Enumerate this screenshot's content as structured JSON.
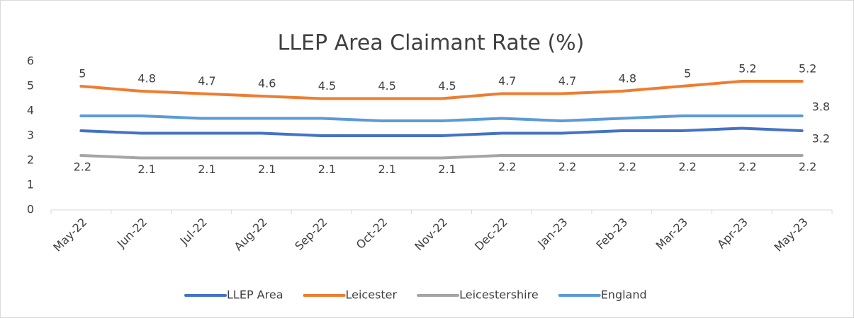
{
  "chart_data": {
    "type": "line",
    "title": "LLEP Area Claimant Rate (%)",
    "categories": [
      "May-22",
      "Jun-22",
      "Jul-22",
      "Aug-22",
      "Sep-22",
      "Oct-22",
      "Nov-22",
      "Dec-22",
      "Jan-23",
      "Feb-23",
      "Mar-23",
      "Apr-23",
      "May-23"
    ],
    "series": [
      {
        "name": "LLEP Area",
        "color": "#4472c4",
        "values": [
          3.2,
          3.1,
          3.1,
          3.1,
          3.0,
          3.0,
          3.0,
          3.1,
          3.1,
          3.2,
          3.2,
          3.3,
          3.2
        ],
        "data_labels": "last",
        "label_position": "below"
      },
      {
        "name": "Leicester",
        "color": "#ed7d31",
        "values": [
          5,
          4.8,
          4.7,
          4.6,
          4.5,
          4.5,
          4.5,
          4.7,
          4.7,
          4.8,
          5,
          5.2,
          5.2
        ],
        "data_labels": "all",
        "label_position": "above"
      },
      {
        "name": "Leicestershire",
        "color": "#a5a5a5",
        "values": [
          2.2,
          2.1,
          2.1,
          2.1,
          2.1,
          2.1,
          2.1,
          2.2,
          2.2,
          2.2,
          2.2,
          2.2,
          2.2
        ],
        "data_labels": "all",
        "label_position": "below"
      },
      {
        "name": "England",
        "color": "#5b9bd5",
        "values": [
          3.8,
          3.8,
          3.7,
          3.7,
          3.7,
          3.6,
          3.6,
          3.7,
          3.6,
          3.7,
          3.8,
          3.8,
          3.8
        ],
        "data_labels": "last",
        "label_position": "above"
      }
    ],
    "ylim": [
      0,
      6
    ],
    "yticks": [
      0,
      1,
      2,
      3,
      4,
      5,
      6
    ],
    "grid": false,
    "legend": "bottom"
  }
}
